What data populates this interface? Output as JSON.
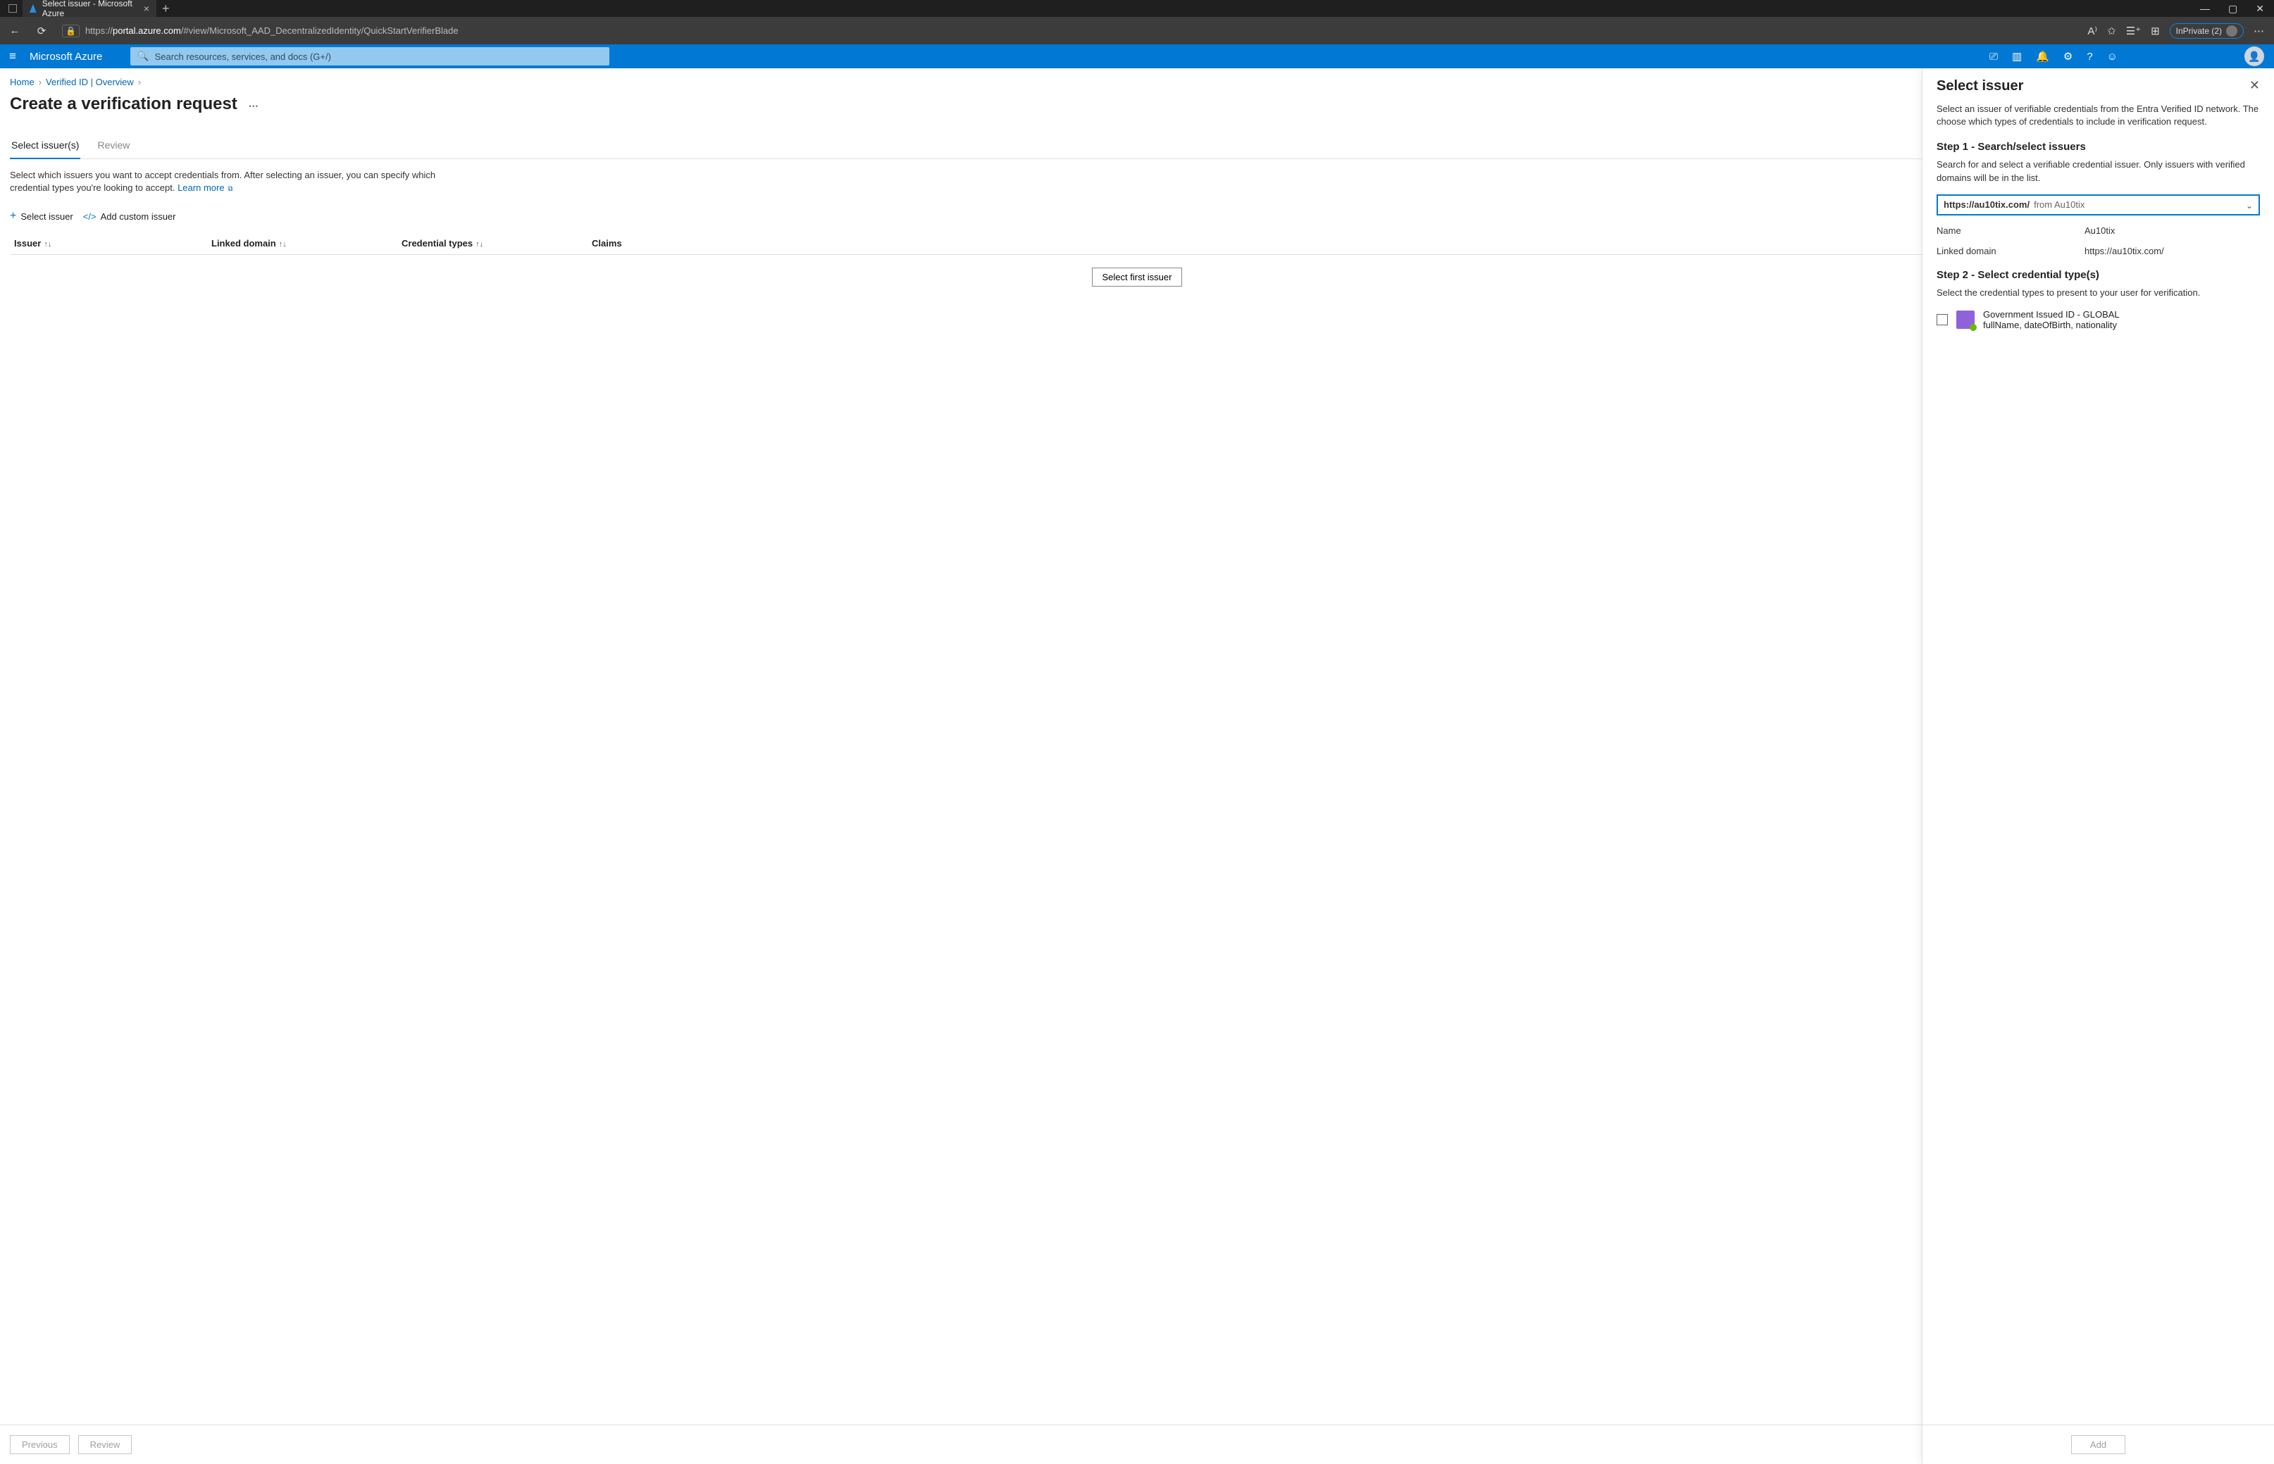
{
  "browser": {
    "tab_title": "Select issuer - Microsoft Azure",
    "url_host": "portal.azure.com",
    "url_path": "/#view/Microsoft_AAD_DecentralizedIdentity/QuickStartVerifierBlade",
    "inprivate_label": "InPrivate (2)"
  },
  "azure": {
    "brand": "Microsoft Azure",
    "search_placeholder": "Search resources, services, and docs (G+/)"
  },
  "breadcrumb": {
    "0": {
      "label": "Home"
    },
    "1": {
      "label": "Verified ID | Overview"
    }
  },
  "page_title": "Create a verification request",
  "tabs": {
    "0": {
      "label": "Select issuer(s)"
    },
    "1": {
      "label": "Review"
    }
  },
  "description": "Select which issuers you want to accept credentials from. After selecting an issuer, you can specify which credential types you're looking to accept.",
  "learn_more": "Learn more",
  "commands": {
    "select_issuer": "Select issuer",
    "add_custom": "Add custom issuer"
  },
  "grid_columns": {
    "issuer": "Issuer",
    "linked_domain": "Linked domain",
    "cred_types": "Credential types",
    "claims": "Claims"
  },
  "select_first_btn": "Select first issuer",
  "footer": {
    "prev": "Previous",
    "review": "Review"
  },
  "pane": {
    "title": "Select issuer",
    "intro": "Select an issuer of verifiable credentials from the Entra Verified ID network. The choose which types of credentials to include in verification request.",
    "step1_title": "Step 1 - Search/select issuers",
    "step1_desc": "Search for and select a verifiable credential issuer. Only issuers with verified domains will be in the list.",
    "dd_value": "https://au10tix.com/",
    "dd_from": "from  Au10tix",
    "name_k": "Name",
    "name_v": "Au10tix",
    "domain_k": "Linked domain",
    "domain_v": "https://au10tix.com/",
    "step2_title": "Step 2 - Select credential type(s)",
    "step2_desc": "Select the credential types to present to your user for verification.",
    "cred_title": "Government Issued ID - GLOBAL",
    "cred_claims": "fullName, dateOfBirth, nationality",
    "add_btn": "Add"
  },
  "style": {
    "azure_blue": "#0078d4",
    "link_blue": "#0067b8",
    "border_gray": "#e1dfdd",
    "disabled_text": "#a19f9d",
    "cred_badge_color": "#8f62d9",
    "cred_badge_dot": "#6bb700",
    "search_bg": "#93c9ee",
    "chrome_bg": "#1f1f1f",
    "toolbar_bg": "#3c3c3c"
  }
}
